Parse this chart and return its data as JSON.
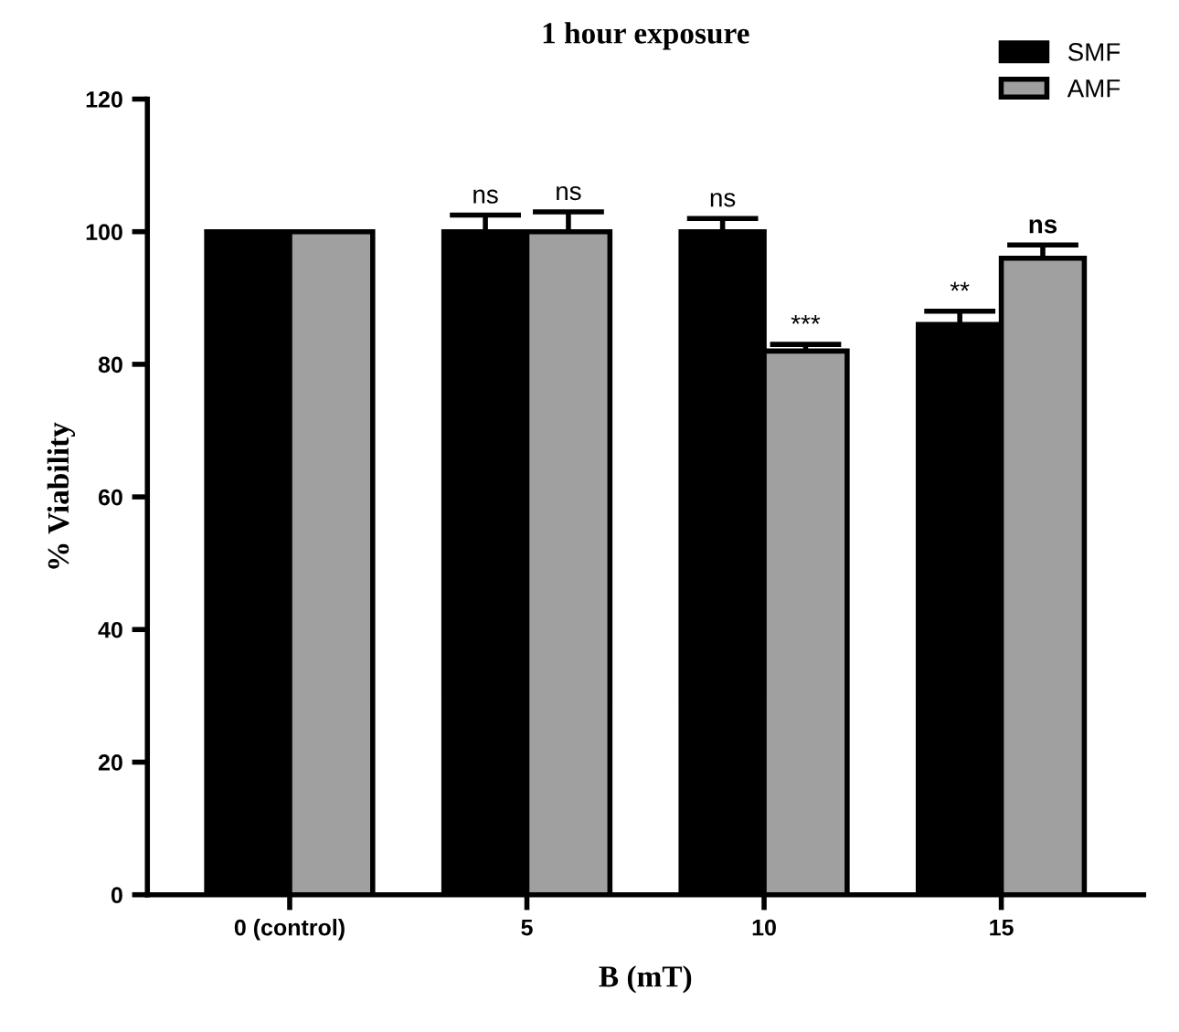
{
  "chart_data": {
    "type": "bar",
    "title": "1 hour exposure",
    "xlabel": "B (mT)",
    "ylabel": "% Viability",
    "categories": [
      "0 (control)",
      "5",
      "10",
      "15"
    ],
    "series": [
      {
        "name": "SMF",
        "color": "#000000",
        "values": [
          100,
          100,
          100,
          86
        ],
        "errors": [
          null,
          2.5,
          2,
          2
        ],
        "value_labels": [
          null,
          "ns",
          "ns",
          "**"
        ]
      },
      {
        "name": "AMF",
        "color": "#a0a0a0",
        "values": [
          100,
          100,
          82,
          96
        ],
        "errors": [
          null,
          3,
          1,
          2
        ],
        "value_labels": [
          null,
          "ns",
          "***",
          "ns"
        ]
      }
    ],
    "ylim": [
      0,
      120
    ],
    "yticks": [
      0,
      20,
      40,
      60,
      80,
      100,
      120
    ],
    "grid": false,
    "legend": "top right"
  }
}
